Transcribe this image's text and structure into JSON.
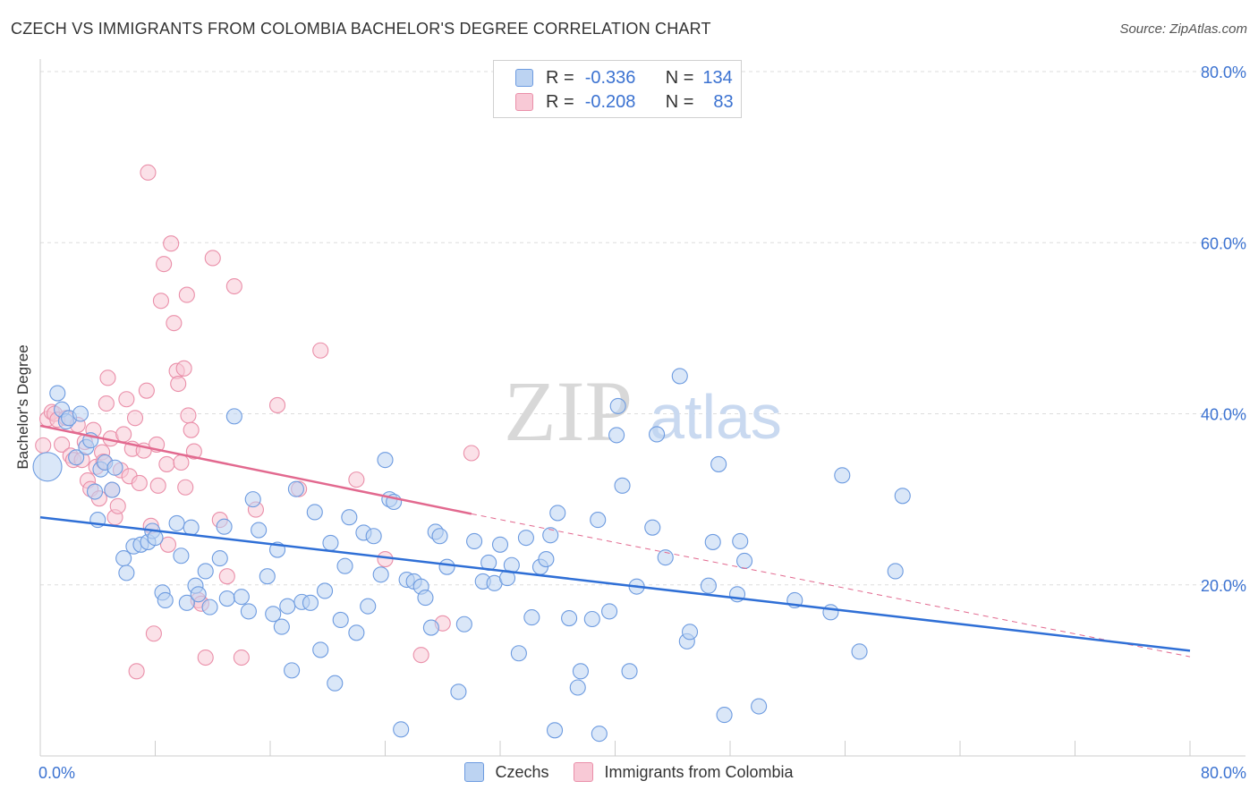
{
  "title": "CZECH VS IMMIGRANTS FROM COLOMBIA BACHELOR'S DEGREE CORRELATION CHART",
  "source": "Source: ZipAtlas.com",
  "watermark": {
    "zip": "ZIP",
    "atlas": "atlas"
  },
  "legend": {
    "czechs": {
      "r_label": "R =",
      "r_value": "-0.336",
      "n_label": "N =",
      "n_value": "134"
    },
    "colombia": {
      "r_label": "R =",
      "r_value": "-0.208",
      "n_label": "N =",
      "n_value": "83"
    }
  },
  "bottom_legend": {
    "czechs": "Czechs",
    "colombia": "Immigrants from Colombia"
  },
  "colors": {
    "blue_fill": "#bcd3f2",
    "blue_stroke": "#6d9be0",
    "blue_line": "#2f6fd6",
    "pink_fill": "#f8c9d6",
    "pink_stroke": "#ea8fa9",
    "pink_line": "#e2698f",
    "tick_label": "#3b72d1",
    "grid": "#dddddd"
  },
  "chart_data": {
    "type": "scatter",
    "title": "CZECH VS IMMIGRANTS FROM COLOMBIA BACHELOR'S DEGREE CORRELATION CHART",
    "xlabel": "",
    "ylabel": "Bachelor's Degree",
    "xlim": [
      0,
      80
    ],
    "ylim": [
      0,
      80
    ],
    "x_tick_labels": [
      "0.0%",
      "80.0%"
    ],
    "y_tick_labels": [
      "20.0%",
      "40.0%",
      "60.0%",
      "80.0%"
    ],
    "y_tick_values": [
      20,
      40,
      60,
      80
    ],
    "grid": true,
    "legend_position": "top-center",
    "series": [
      {
        "name": "Czechs",
        "r": -0.336,
        "n": 134,
        "trend": {
          "x": [
            0,
            80
          ],
          "y": [
            27.9,
            12.3
          ]
        },
        "points": [
          [
            0.5,
            33.8
          ],
          [
            1.2,
            42.4
          ],
          [
            1.5,
            40.5
          ],
          [
            1.8,
            39.1
          ],
          [
            2.0,
            39.5
          ],
          [
            2.5,
            34.9
          ],
          [
            2.8,
            40.0
          ],
          [
            3.2,
            36.1
          ],
          [
            3.5,
            36.9
          ],
          [
            3.8,
            30.9
          ],
          [
            4.0,
            27.6
          ],
          [
            4.2,
            33.5
          ],
          [
            4.5,
            34.3
          ],
          [
            5.0,
            31.1
          ],
          [
            5.2,
            33.7
          ],
          [
            5.8,
            23.1
          ],
          [
            6.0,
            21.4
          ],
          [
            6.5,
            24.5
          ],
          [
            7.0,
            24.7
          ],
          [
            7.5,
            25.0
          ],
          [
            7.8,
            26.3
          ],
          [
            8.0,
            25.5
          ],
          [
            8.5,
            19.1
          ],
          [
            8.7,
            18.2
          ],
          [
            9.5,
            27.2
          ],
          [
            9.8,
            23.4
          ],
          [
            10.2,
            17.9
          ],
          [
            10.5,
            26.7
          ],
          [
            10.8,
            19.9
          ],
          [
            11.0,
            18.9
          ],
          [
            11.5,
            21.6
          ],
          [
            11.8,
            17.4
          ],
          [
            12.5,
            23.1
          ],
          [
            12.8,
            26.8
          ],
          [
            13.0,
            18.4
          ],
          [
            13.5,
            39.7
          ],
          [
            14.0,
            18.6
          ],
          [
            14.5,
            16.9
          ],
          [
            14.8,
            30.0
          ],
          [
            15.2,
            26.4
          ],
          [
            15.8,
            21.0
          ],
          [
            16.2,
            16.6
          ],
          [
            16.5,
            24.1
          ],
          [
            16.8,
            15.1
          ],
          [
            17.2,
            17.5
          ],
          [
            17.5,
            10.0
          ],
          [
            17.8,
            31.2
          ],
          [
            18.2,
            18.0
          ],
          [
            18.8,
            17.9
          ],
          [
            19.1,
            28.5
          ],
          [
            19.5,
            12.4
          ],
          [
            19.8,
            19.3
          ],
          [
            20.2,
            24.9
          ],
          [
            20.5,
            8.5
          ],
          [
            20.9,
            15.9
          ],
          [
            21.2,
            22.2
          ],
          [
            21.5,
            27.9
          ],
          [
            22.0,
            14.4
          ],
          [
            22.5,
            26.1
          ],
          [
            22.8,
            17.5
          ],
          [
            23.2,
            25.7
          ],
          [
            23.7,
            21.2
          ],
          [
            24.0,
            34.6
          ],
          [
            24.3,
            30.0
          ],
          [
            24.6,
            29.7
          ],
          [
            25.1,
            3.1
          ],
          [
            25.5,
            20.6
          ],
          [
            26.0,
            20.4
          ],
          [
            26.5,
            19.8
          ],
          [
            26.8,
            18.5
          ],
          [
            27.2,
            15.0
          ],
          [
            27.5,
            26.2
          ],
          [
            27.8,
            25.7
          ],
          [
            28.3,
            22.1
          ],
          [
            29.1,
            7.5
          ],
          [
            29.5,
            15.4
          ],
          [
            30.2,
            25.1
          ],
          [
            30.8,
            20.4
          ],
          [
            31.2,
            22.6
          ],
          [
            31.6,
            20.2
          ],
          [
            32.0,
            24.7
          ],
          [
            32.5,
            20.8
          ],
          [
            32.8,
            22.3
          ],
          [
            33.3,
            12.0
          ],
          [
            33.8,
            25.5
          ],
          [
            34.2,
            16.2
          ],
          [
            34.8,
            22.1
          ],
          [
            35.2,
            23.0
          ],
          [
            35.5,
            25.8
          ],
          [
            35.8,
            3.0
          ],
          [
            36.0,
            28.4
          ],
          [
            36.8,
            16.1
          ],
          [
            37.4,
            8.0
          ],
          [
            37.6,
            9.9
          ],
          [
            38.4,
            16.0
          ],
          [
            38.8,
            27.6
          ],
          [
            38.9,
            2.6
          ],
          [
            39.6,
            16.9
          ],
          [
            40.2,
            40.9
          ],
          [
            40.1,
            37.5
          ],
          [
            40.5,
            31.6
          ],
          [
            41.0,
            9.9
          ],
          [
            41.5,
            19.8
          ],
          [
            42.6,
            26.7
          ],
          [
            42.9,
            37.6
          ],
          [
            43.5,
            23.2
          ],
          [
            44.5,
            44.4
          ],
          [
            45.0,
            13.4
          ],
          [
            45.2,
            14.5
          ],
          [
            46.5,
            19.9
          ],
          [
            46.8,
            25.0
          ],
          [
            47.2,
            34.1
          ],
          [
            47.6,
            4.8
          ],
          [
            48.5,
            18.9
          ],
          [
            48.7,
            25.1
          ],
          [
            49.0,
            22.8
          ],
          [
            50.0,
            5.8
          ],
          [
            52.5,
            18.2
          ],
          [
            55.0,
            16.8
          ],
          [
            55.8,
            32.8
          ],
          [
            57.0,
            12.2
          ],
          [
            59.5,
            21.6
          ],
          [
            60.0,
            30.4
          ]
        ]
      },
      {
        "name": "Immigrants from Colombia",
        "r": -0.208,
        "n": 83,
        "trend": {
          "x": [
            0,
            30
          ],
          "y": [
            38.6,
            28.3
          ]
        },
        "trend_extended": {
          "x": [
            30,
            80
          ],
          "y": [
            28.3,
            11.6
          ]
        },
        "points": [
          [
            0.2,
            36.3
          ],
          [
            0.5,
            39.4
          ],
          [
            0.8,
            40.2
          ],
          [
            1.0,
            40.0
          ],
          [
            1.2,
            39.3
          ],
          [
            1.5,
            36.4
          ],
          [
            1.8,
            39.5
          ],
          [
            2.1,
            35.1
          ],
          [
            2.3,
            34.6
          ],
          [
            2.6,
            38.7
          ],
          [
            2.9,
            34.6
          ],
          [
            3.1,
            36.7
          ],
          [
            3.3,
            32.2
          ],
          [
            3.5,
            31.2
          ],
          [
            3.7,
            38.1
          ],
          [
            3.9,
            33.8
          ],
          [
            4.1,
            30.1
          ],
          [
            4.3,
            35.5
          ],
          [
            4.4,
            34.4
          ],
          [
            4.6,
            41.2
          ],
          [
            4.7,
            44.2
          ],
          [
            4.9,
            37.1
          ],
          [
            5.0,
            31.1
          ],
          [
            5.2,
            27.9
          ],
          [
            5.4,
            29.2
          ],
          [
            5.6,
            33.4
          ],
          [
            5.8,
            37.6
          ],
          [
            6.0,
            41.7
          ],
          [
            6.2,
            32.7
          ],
          [
            6.4,
            35.9
          ],
          [
            6.6,
            39.5
          ],
          [
            6.7,
            9.9
          ],
          [
            6.9,
            31.9
          ],
          [
            7.2,
            35.7
          ],
          [
            7.4,
            42.7
          ],
          [
            7.5,
            68.2
          ],
          [
            7.7,
            26.9
          ],
          [
            7.9,
            14.3
          ],
          [
            8.1,
            36.4
          ],
          [
            8.2,
            31.6
          ],
          [
            8.4,
            53.2
          ],
          [
            8.6,
            57.5
          ],
          [
            8.8,
            34.1
          ],
          [
            8.9,
            24.7
          ],
          [
            9.1,
            59.9
          ],
          [
            9.3,
            50.6
          ],
          [
            9.5,
            45.0
          ],
          [
            9.6,
            43.5
          ],
          [
            9.8,
            34.3
          ],
          [
            10.0,
            45.3
          ],
          [
            10.1,
            31.4
          ],
          [
            10.2,
            53.9
          ],
          [
            10.3,
            39.8
          ],
          [
            10.5,
            38.1
          ],
          [
            10.7,
            35.6
          ],
          [
            11.0,
            18.2
          ],
          [
            11.2,
            17.8
          ],
          [
            11.5,
            11.5
          ],
          [
            12.0,
            58.2
          ],
          [
            12.5,
            27.6
          ],
          [
            13.0,
            21.0
          ],
          [
            13.5,
            54.9
          ],
          [
            14.0,
            11.5
          ],
          [
            15.0,
            28.8
          ],
          [
            16.5,
            41.0
          ],
          [
            18.0,
            31.2
          ],
          [
            19.5,
            47.4
          ],
          [
            22.0,
            32.3
          ],
          [
            24.0,
            23.0
          ],
          [
            26.5,
            11.8
          ],
          [
            28.0,
            15.5
          ],
          [
            30.0,
            35.4
          ]
        ]
      }
    ]
  }
}
